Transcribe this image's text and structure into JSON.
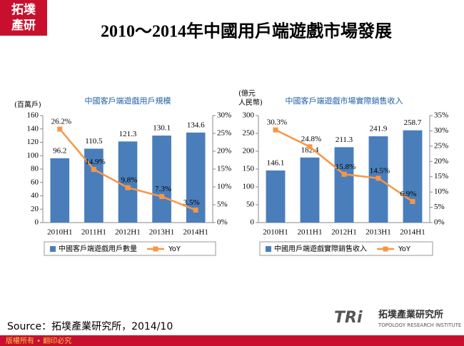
{
  "logo": [
    "拓墣",
    "產研"
  ],
  "title": "2010～2014年中國用戶端遊戲市場發展",
  "chart_data": [
    {
      "type": "bar",
      "title": "中國客戶端遊戲用戶規模",
      "ylabel": [
        "(百萬戶)"
      ],
      "categories": [
        "2010H1",
        "2011H1",
        "2012H1",
        "2013H1",
        "2014H1"
      ],
      "series": [
        {
          "name": "中國客戶端遊戲用戶數量",
          "color": "#4a7ebb",
          "values": [
            96.2,
            110.5,
            121.3,
            130.1,
            134.6
          ]
        },
        {
          "name": "YoY",
          "color": "#f79646",
          "axis": "y2",
          "values": [
            26.2,
            14.9,
            9.8,
            7.3,
            3.5
          ],
          "value_labels": [
            "26.2%",
            "14.9%",
            "9.8%",
            "7.3%",
            "3.5%"
          ]
        }
      ],
      "ylim": [
        0,
        160
      ],
      "yticks": [
        0,
        20,
        40,
        60,
        80,
        100,
        120,
        140,
        160
      ],
      "y2lim": [
        0,
        30
      ],
      "y2ticks": [
        {
          "value": 0,
          "label": "0%"
        },
        {
          "value": 5,
          "label": "5%"
        },
        {
          "value": 10,
          "label": "10%"
        },
        {
          "value": 15,
          "label": "15%"
        },
        {
          "value": 20,
          "label": "20%"
        },
        {
          "value": 25,
          "label": "25%"
        },
        {
          "value": 30,
          "label": "30%"
        }
      ],
      "legend": "bottom"
    },
    {
      "type": "bar",
      "title": "中國客戶端遊戲市場實際銷售收入",
      "ylabel": [
        "(億元",
        "人民幣)"
      ],
      "categories": [
        "2010H1",
        "2011H1",
        "2012H1",
        "2013H1",
        "2014H1"
      ],
      "series": [
        {
          "name": "中國用戶端遊戲實際銷售收入",
          "color": "#4a7ebb",
          "values": [
            146.1,
            182.4,
            211.3,
            241.9,
            258.7
          ]
        },
        {
          "name": "YoY",
          "color": "#f79646",
          "axis": "y2",
          "values": [
            30.3,
            24.8,
            15.8,
            14.5,
            6.9
          ],
          "value_labels": [
            "30.3%",
            "24.8%",
            "15.8%",
            "14.5%",
            "6.9%"
          ]
        }
      ],
      "ylim": [
        0,
        300
      ],
      "yticks": [
        0,
        50,
        100,
        150,
        200,
        250,
        300
      ],
      "y2lim": [
        0,
        35
      ],
      "y2ticks": [
        {
          "value": 0,
          "label": "0%"
        },
        {
          "value": 5,
          "label": "5%"
        },
        {
          "value": 10,
          "label": "10%"
        },
        {
          "value": 15,
          "label": "15%"
        },
        {
          "value": 20,
          "label": "20%"
        },
        {
          "value": 25,
          "label": "25%"
        },
        {
          "value": 30,
          "label": "30%"
        },
        {
          "value": 35,
          "label": "35%"
        }
      ],
      "legend": "bottom"
    }
  ],
  "source": "Source：拓墣產業研究所，2014/10",
  "footer": "版權所有 • 翻印必究",
  "brand": {
    "mark": "TRi",
    "name": "拓墣產業研究所",
    "english": "TOPOLOGY RESEARCH INSTITUTE"
  }
}
